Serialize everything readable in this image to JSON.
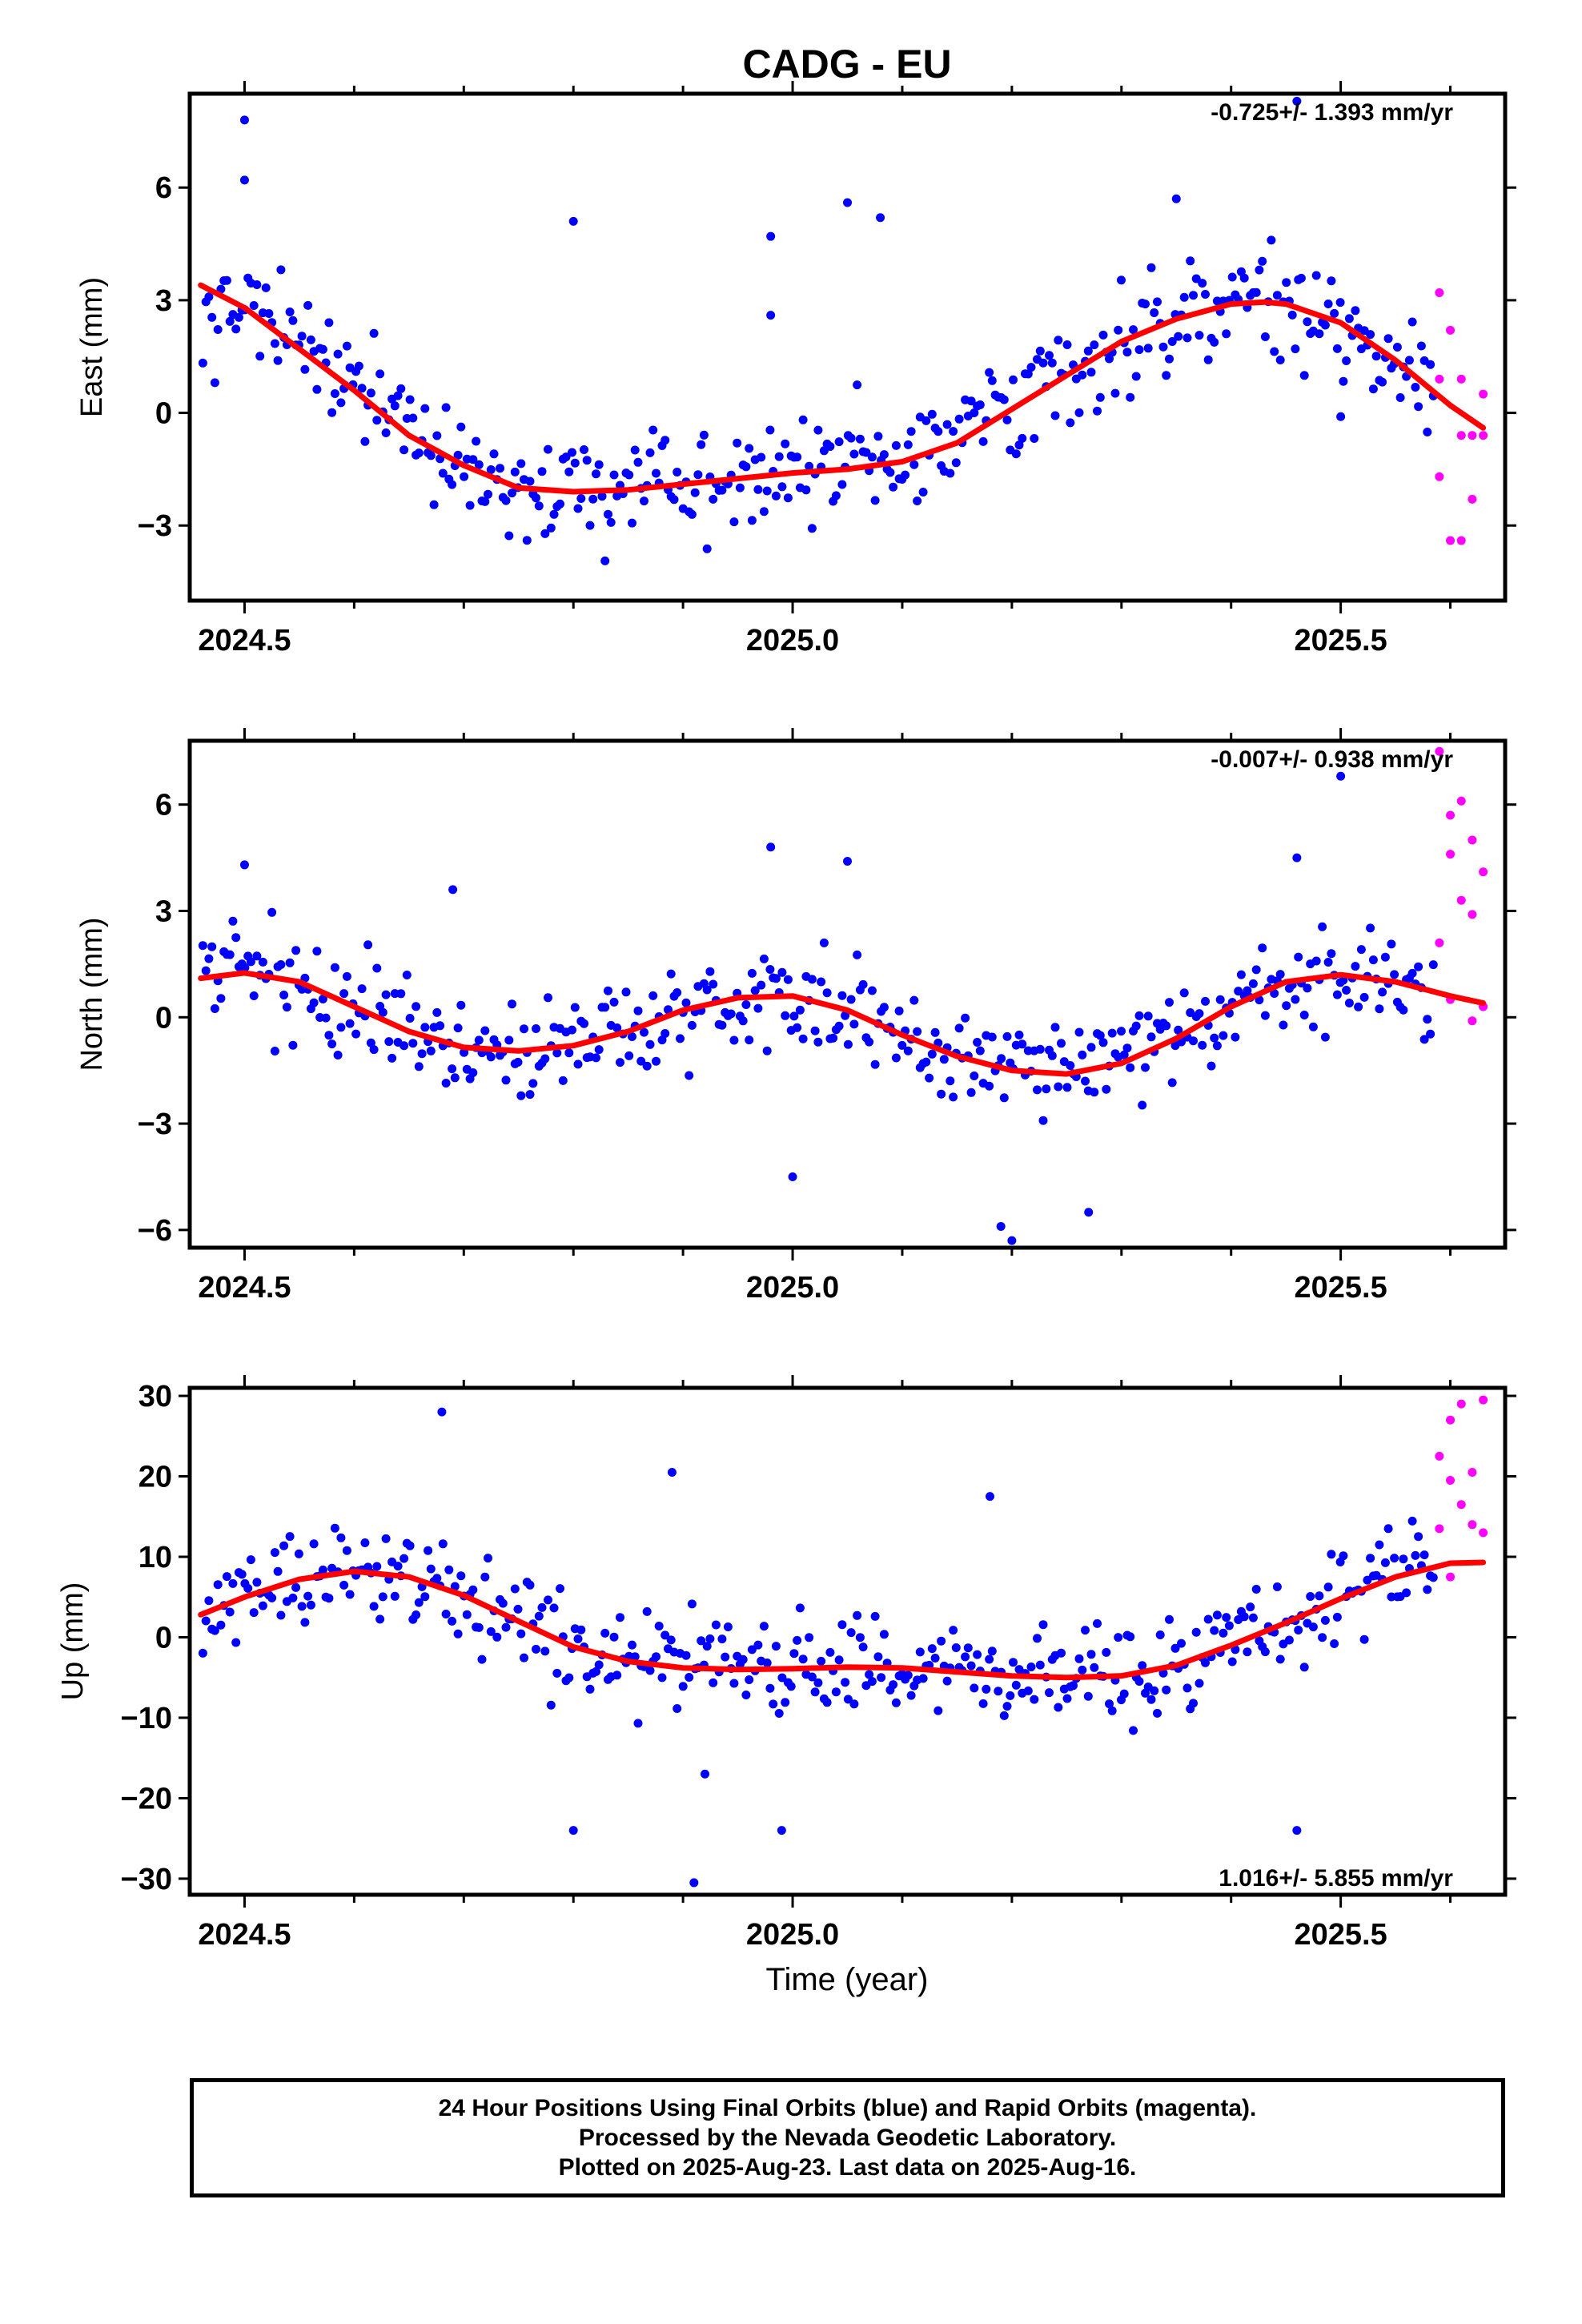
{
  "title": "CADG - EU",
  "colors": {
    "final": "#0000ff",
    "rapid": "#ff00ff",
    "fit": "#ff0000",
    "frame": "#000000"
  },
  "chart_data": [
    {
      "type": "scatter",
      "ylabel": "East (mm)",
      "rate_label": "-0.725+/- 1.393 mm/yr",
      "xlim": [
        2024.45,
        2025.65
      ],
      "ylim": [
        -5.0,
        8.5
      ],
      "yticks": [
        -3,
        0,
        3,
        6
      ],
      "ytick_labels": [
        "−3",
        "0",
        "3",
        "6"
      ],
      "xticks": [
        2024.5,
        2025.0,
        2025.5
      ],
      "xtick_labels": [
        "2024.5",
        "2025.0",
        "2025.5"
      ],
      "fit_curve": {
        "x": [
          2024.46,
          2024.5,
          2024.55,
          2024.6,
          2024.65,
          2024.7,
          2024.75,
          2024.8,
          2024.85,
          2024.9,
          2024.95,
          2025.0,
          2025.05,
          2025.1,
          2025.15,
          2025.2,
          2025.25,
          2025.3,
          2025.35,
          2025.4,
          2025.43,
          2025.45,
          2025.5,
          2025.55,
          2025.6,
          2025.63
        ],
        "y": [
          3.4,
          2.8,
          1.7,
          0.6,
          -0.6,
          -1.4,
          -2.0,
          -2.1,
          -2.05,
          -1.9,
          -1.75,
          -1.6,
          -1.5,
          -1.3,
          -0.8,
          0.1,
          1.0,
          1.9,
          2.5,
          2.9,
          2.95,
          2.9,
          2.4,
          1.4,
          0.2,
          -0.4
        ]
      },
      "rapid_points": {
        "x": [
          2025.59,
          2025.6,
          2025.61,
          2025.62,
          2025.63,
          2025.59,
          2025.6,
          2025.61,
          2025.62,
          2025.63,
          2025.59,
          2025.61
        ],
        "y": [
          3.2,
          2.2,
          0.9,
          -0.6,
          -0.6,
          -1.7,
          -3.4,
          -3.4,
          -2.3,
          0.5,
          0.9,
          -0.6
        ]
      },
      "outliers": {
        "x": [
          2024.5,
          2024.8,
          2024.98,
          2025.05,
          2025.08,
          2025.35,
          2025.46,
          2024.5,
          2024.98,
          2025.5
        ],
        "y": [
          7.8,
          5.1,
          4.7,
          5.6,
          5.2,
          5.7,
          8.3,
          6.2,
          2.6,
          -0.1
        ]
      }
    },
    {
      "type": "scatter",
      "ylabel": "North (mm)",
      "rate_label": "-0.007+/- 0.938 mm/yr",
      "xlim": [
        2024.45,
        2025.65
      ],
      "ylim": [
        -6.5,
        7.8
      ],
      "yticks": [
        -6,
        -3,
        0,
        3,
        6
      ],
      "ytick_labels": [
        "−6",
        "−3",
        "0",
        "3",
        "6"
      ],
      "xticks": [
        2024.5,
        2025.0,
        2025.5
      ],
      "xtick_labels": [
        "2024.5",
        "2025.0",
        "2025.5"
      ],
      "fit_curve": {
        "x": [
          2024.46,
          2024.5,
          2024.55,
          2024.6,
          2024.65,
          2024.7,
          2024.75,
          2024.8,
          2024.85,
          2024.9,
          2024.95,
          2025.0,
          2025.05,
          2025.1,
          2025.15,
          2025.2,
          2025.25,
          2025.3,
          2025.35,
          2025.4,
          2025.45,
          2025.5,
          2025.55,
          2025.6,
          2025.63
        ],
        "y": [
          1.1,
          1.25,
          1.0,
          0.3,
          -0.4,
          -0.85,
          -0.95,
          -0.8,
          -0.4,
          0.2,
          0.55,
          0.6,
          0.2,
          -0.5,
          -1.1,
          -1.5,
          -1.6,
          -1.3,
          -0.6,
          0.3,
          1.0,
          1.2,
          1.0,
          0.6,
          0.4
        ]
      },
      "rapid_points": {
        "x": [
          2025.59,
          2025.6,
          2025.61,
          2025.62,
          2025.63,
          2025.6,
          2025.61,
          2025.62,
          2025.63,
          2025.59,
          2025.6,
          2025.62,
          2025.63
        ],
        "y": [
          7.5,
          5.7,
          6.1,
          5.0,
          4.1,
          4.6,
          3.3,
          2.9,
          0.3,
          2.1,
          0.5,
          -0.1,
          0.3
        ]
      },
      "outliers": {
        "x": [
          2024.5,
          2024.69,
          2024.98,
          2025.05,
          2025.19,
          2025.2,
          2025.27,
          2025.46,
          2025.5,
          2025.0
        ],
        "y": [
          4.3,
          3.6,
          4.8,
          4.4,
          -5.9,
          -6.3,
          -5.5,
          4.5,
          6.8,
          -4.5
        ]
      }
    },
    {
      "type": "scatter",
      "ylabel": "Up (mm)",
      "rate_label": "1.016+/- 5.855 mm/yr",
      "xlim": [
        2024.45,
        2025.65
      ],
      "ylim": [
        -32,
        31
      ],
      "yticks": [
        -30,
        -20,
        -10,
        0,
        10,
        20,
        30
      ],
      "ytick_labels": [
        "−30",
        "−20",
        "−10",
        "0",
        "10",
        "20",
        "30"
      ],
      "xticks": [
        2024.5,
        2025.0,
        2025.5
      ],
      "xtick_labels": [
        "2024.5",
        "2025.0",
        "2025.5"
      ],
      "xlabel": "Time (year)",
      "fit_curve": {
        "x": [
          2024.46,
          2024.5,
          2024.55,
          2024.6,
          2024.65,
          2024.7,
          2024.75,
          2024.8,
          2024.85,
          2024.9,
          2024.95,
          2025.0,
          2025.05,
          2025.1,
          2025.15,
          2025.2,
          2025.25,
          2025.3,
          2025.35,
          2025.4,
          2025.45,
          2025.5,
          2025.55,
          2025.6,
          2025.63
        ],
        "y": [
          2.8,
          5.0,
          7.2,
          8.2,
          7.5,
          5.2,
          2.0,
          -1.2,
          -3.0,
          -3.8,
          -4.0,
          -3.9,
          -3.7,
          -3.8,
          -4.3,
          -4.8,
          -5.0,
          -4.8,
          -3.5,
          -1.0,
          1.8,
          4.8,
          7.5,
          9.2,
          9.3
        ]
      },
      "rapid_points": {
        "x": [
          2025.59,
          2025.6,
          2025.61,
          2025.62,
          2025.63,
          2025.59,
          2025.6,
          2025.61,
          2025.62,
          2025.63,
          2025.6
        ],
        "y": [
          22.5,
          27.0,
          29.0,
          20.5,
          29.5,
          13.5,
          19.5,
          16.5,
          14.0,
          13.0,
          7.5
        ]
      },
      "outliers": {
        "x": [
          2024.68,
          2024.8,
          2024.89,
          2024.91,
          2024.99,
          2025.46,
          2024.92,
          2025.18
        ],
        "y": [
          28.0,
          -24.0,
          20.5,
          -30.5,
          -24.0,
          -24.0,
          -17.0,
          17.5
        ]
      }
    }
  ],
  "caption": {
    "line1": "24 Hour Positions Using Final Orbits (blue) and Rapid Orbits (magenta).",
    "line2": "Processed by the Nevada Geodetic Laboratory.",
    "line3": "Plotted on 2025-Aug-23. Last data on 2025-Aug-16."
  }
}
